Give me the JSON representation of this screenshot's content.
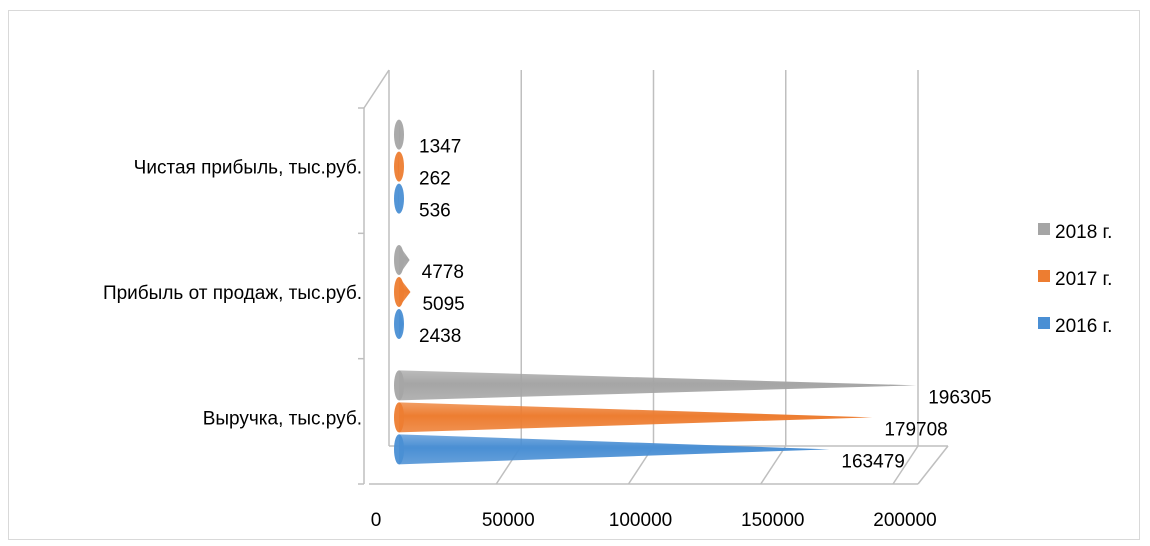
{
  "chart_data": {
    "type": "bar",
    "orientation": "horizontal",
    "style": "3d-cone",
    "categories": [
      "Выручка, тыс.руб.",
      "Прибыль от продаж, тыс.руб.",
      "Чистая прибыль, тыс.руб."
    ],
    "series": [
      {
        "name": "2016 г.",
        "color": "#4a8fd4",
        "values": [
          163479,
          2438,
          536
        ]
      },
      {
        "name": "2017 г.",
        "color": "#ed7d31",
        "values": [
          179708,
          5095,
          262
        ]
      },
      {
        "name": "2018 г.",
        "color": "#a5a5a5",
        "values": [
          196305,
          4778,
          1347
        ]
      }
    ],
    "xlim": [
      0,
      200000
    ],
    "xticks": [
      {
        "value": 0,
        "label": "0"
      },
      {
        "value": 50000,
        "label": "50000"
      },
      {
        "value": 100000,
        "label": "100000"
      },
      {
        "value": 150000,
        "label": "150000"
      },
      {
        "value": 200000,
        "label": "200000"
      }
    ],
    "grid": true,
    "legend": "right",
    "title": "",
    "xlabel": "",
    "ylabel": ""
  }
}
